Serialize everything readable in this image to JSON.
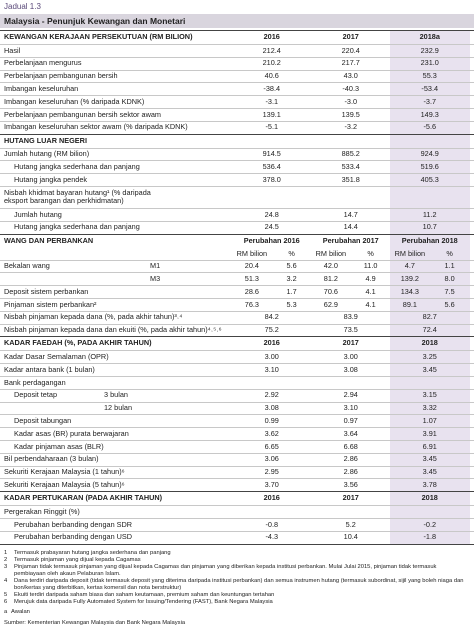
{
  "jadual": "Jadual 1.3",
  "title": "Malaysia - Penunjuk Kewangan dan Monetari",
  "sections": [
    {
      "header": [
        "KEWANGAN KERAJAAN PERSEKUTUAN (RM BILION)",
        "2016",
        "2017",
        "2018a"
      ],
      "rows": [
        {
          "label": "Hasil",
          "values": [
            "212.4",
            "220.4",
            "232.9"
          ]
        },
        {
          "label": "Perbelanjaan mengurus",
          "values": [
            "210.2",
            "217.7",
            "231.0"
          ]
        },
        {
          "label": "Perbelanjaan pembangunan bersih",
          "values": [
            "40.6",
            "43.0",
            "55.3"
          ]
        },
        {
          "label": "Imbangan keseluruhan",
          "values": [
            "-38.4",
            "-40.3",
            "-53.4"
          ]
        },
        {
          "label": "Imbangan keseluruhan (% daripada KDNK)",
          "values": [
            "-3.1",
            "-3.0",
            "-3.7"
          ]
        },
        {
          "label": "Perbelanjaan pembangunan bersih sektor awam",
          "values": [
            "139.1",
            "139.5",
            "149.3"
          ]
        },
        {
          "label": "Imbangan keseluruhan sektor awam (% daripada KDNK)",
          "values": [
            "-5.1",
            "-3.2",
            "-5.6"
          ]
        }
      ]
    },
    {
      "header": [
        "HUTANG LUAR NEGERI"
      ],
      "rows": [
        {
          "label": "Jumlah hutang (RM bilion)",
          "values": [
            "914.5",
            "885.2",
            "924.9"
          ]
        },
        {
          "label": "Hutang jangka sederhana dan panjang",
          "values": [
            "536.4",
            "533.4",
            "519.6"
          ]
        },
        {
          "label": "Hutang jangka pendek",
          "values": [
            "378.0",
            "351.8",
            "405.3"
          ]
        },
        {
          "label": "Nisbah khidmat bayaran hutang¹ (% daripada eksport barangan dan perkhidmatan)"
        },
        {
          "label": "Jumlah hutang",
          "values": [
            "24.8",
            "14.7",
            "11.2"
          ]
        },
        {
          "label": "Hutang jangka sederhana dan panjang",
          "values": [
            "24.5",
            "14.4",
            "10.7"
          ]
        }
      ]
    },
    {
      "header": [
        "WANG DAN PERBANKAN",
        "Perubahan 2016",
        "Perubahan 2017",
        "Perubahan 2018"
      ],
      "subheader": [
        "RM bilion",
        "%",
        "RM bilion",
        "%",
        "RM bilion",
        "%"
      ],
      "rows": [
        {
          "label": "Bekalan wang",
          "sub": "M1",
          "values": [
            "20.4",
            "5.6",
            "42.0",
            "11.0",
            "4.7",
            "1.1"
          ]
        },
        {
          "sub": "M3",
          "values": [
            "51.3",
            "3.2",
            "81.2",
            "4.9",
            "139.2",
            "8.0"
          ]
        },
        {
          "label": "Deposit sistem perbankan",
          "values": [
            "28.6",
            "1.7",
            "70.6",
            "4.1",
            "134.3",
            "7.5"
          ]
        },
        {
          "label": "Pinjaman sistem perbankan²",
          "values": [
            "76.3",
            "5.3",
            "62.9",
            "4.1",
            "89.1",
            "5.6"
          ]
        },
        {
          "label": "Nisbah pinjaman kepada dana (%, pada akhir tahun)³˒⁴",
          "values": [
            "84.2",
            "83.9",
            "82.7"
          ]
        },
        {
          "label": "Nisbah pinjaman kepada dana dan ekuiti (%, pada akhir tahun)⁴˒⁵˒⁶",
          "values": [
            "75.2",
            "73.5",
            "72.4"
          ]
        }
      ]
    },
    {
      "header": [
        "KADAR FAEDAH (%, PADA AKHIR TAHUN)",
        "2016",
        "2017",
        "2018"
      ],
      "rows": [
        {
          "label": "Kadar Dasar Semalaman (OPR)",
          "values": [
            "3.00",
            "3.00",
            "3.25"
          ]
        },
        {
          "label": "Kadar antara bank (1 bulan)",
          "values": [
            "3.10",
            "3.08",
            "3.45"
          ]
        },
        {
          "label": "Bank perdagangan"
        },
        {
          "label": "Deposit tetap",
          "sub": "3 bulan",
          "values": [
            "2.92",
            "2.94",
            "3.15"
          ]
        },
        {
          "sub": "12 bulan",
          "values": [
            "3.08",
            "3.10",
            "3.32"
          ]
        },
        {
          "label": "Deposit tabungan",
          "values": [
            "0.99",
            "0.97",
            "1.07"
          ]
        },
        {
          "label": "Kadar asas (BR) purata berwajaran",
          "values": [
            "3.62",
            "3.64",
            "3.91"
          ]
        },
        {
          "label": "Kadar pinjaman asas (BLR)",
          "values": [
            "6.65",
            "6.68",
            "6.91"
          ]
        },
        {
          "label": "Bil perbendaharaan (3 bulan)",
          "values": [
            "3.06",
            "2.86",
            "3.45"
          ]
        },
        {
          "label": "Sekuriti Kerajaan Malaysia (1 tahun)⁶",
          "values": [
            "2.95",
            "2.86",
            "3.45"
          ]
        },
        {
          "label": "Sekuriti Kerajaan Malaysia (5 tahun)⁶",
          "values": [
            "3.70",
            "3.56",
            "3.78"
          ]
        }
      ]
    },
    {
      "header": [
        "KADAR PERTUKARAN (PADA AKHIR TAHUN)",
        "2016",
        "2017",
        "2018"
      ],
      "rows": [
        {
          "label": "Pergerakan Ringgit (%)"
        },
        {
          "label": "Perubahan berbanding dengan SDR",
          "values": [
            "-0.8",
            "5.2",
            "-0.2"
          ]
        },
        {
          "label": "Perubahan berbanding dengan USD",
          "values": [
            "-4.3",
            "10.4",
            "-1.8"
          ]
        }
      ]
    }
  ],
  "footnotes": [
    {
      "marker": "1",
      "text": "Termasuk prabayaran hutang jangka sederhana dan panjang"
    },
    {
      "marker": "2",
      "text": "Termasuk pinjaman yang dijual kepada Cagamas"
    },
    {
      "marker": "3",
      "text": "Pinjaman tidak termasuk pinjaman yang dijual kepada Cagamas dan pinjaman yang diberikan kepada institusi perbankan. Mulai Julai 2015, pinjaman tidak termasuk pembiayaan oleh akaun Pelaburan Islam."
    },
    {
      "marker": "4",
      "text": "Dana terdiri daripada deposit (tidak termasuk deposit yang diterima daripada institusi perbankan) dan semua instrumen hutang (termasuk subordinat, sijil yang boleh niaga dan bon/kertas yang diterbitkan, kertas komersil dan nota berstruktur)"
    },
    {
      "marker": "5",
      "text": "Ekuiti terdiri daripada saham biasa dan saham keutamaan, premium saham dan keuntungan tertahan"
    },
    {
      "marker": "6",
      "text": "Merujuk data daripada Fully Automated System for Issuing/Tendering (FAST), Bank Negara Malaysia"
    }
  ],
  "note": {
    "marker": "a",
    "text": "Awalan"
  },
  "source": "Sumber: Kementerian Kewangan Malaysia dan Bank Negara Malaysia"
}
